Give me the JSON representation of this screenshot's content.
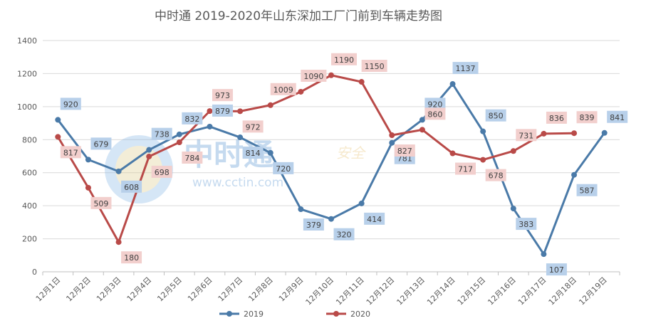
{
  "chart_data": {
    "type": "line",
    "title": "中时通 2019-2020年山东深加工厂门前到车辆走势图",
    "xlabel": "",
    "ylabel": "",
    "categories": [
      "12月1日",
      "12月2日",
      "12月3日",
      "12月4日",
      "12月5日",
      "12月6日",
      "12月7日",
      "12月8日",
      "12月9日",
      "12月10日",
      "12月11日",
      "12月12日",
      "12月13日",
      "12月14日",
      "12月15日",
      "12月16日",
      "12月17日",
      "12月18日",
      "12月19日"
    ],
    "ylim": [
      0,
      1400
    ],
    "yticks": [
      0,
      200,
      400,
      600,
      800,
      1000,
      1200,
      1400
    ],
    "grid": true,
    "legend": "bottom",
    "series": [
      {
        "name": "2019",
        "color": "#4a7aa8",
        "label_bg": "#b8d0ea",
        "values": [
          920,
          679,
          608,
          738,
          832,
          879,
          814,
          720,
          379,
          320,
          414,
          781,
          920,
          1137,
          850,
          383,
          107,
          587,
          841
        ]
      },
      {
        "name": "2020",
        "color": "#b94a48",
        "label_bg": "#f2cfcd",
        "values": [
          817,
          509,
          180,
          698,
          784,
          973,
          972,
          1009,
          1090,
          1190,
          1150,
          827,
          860,
          717,
          678,
          731,
          836,
          839,
          null
        ]
      }
    ]
  },
  "watermark": {
    "logo_text": "中时通",
    "url_text": "www.cctin.com",
    "side_text": "安全"
  }
}
